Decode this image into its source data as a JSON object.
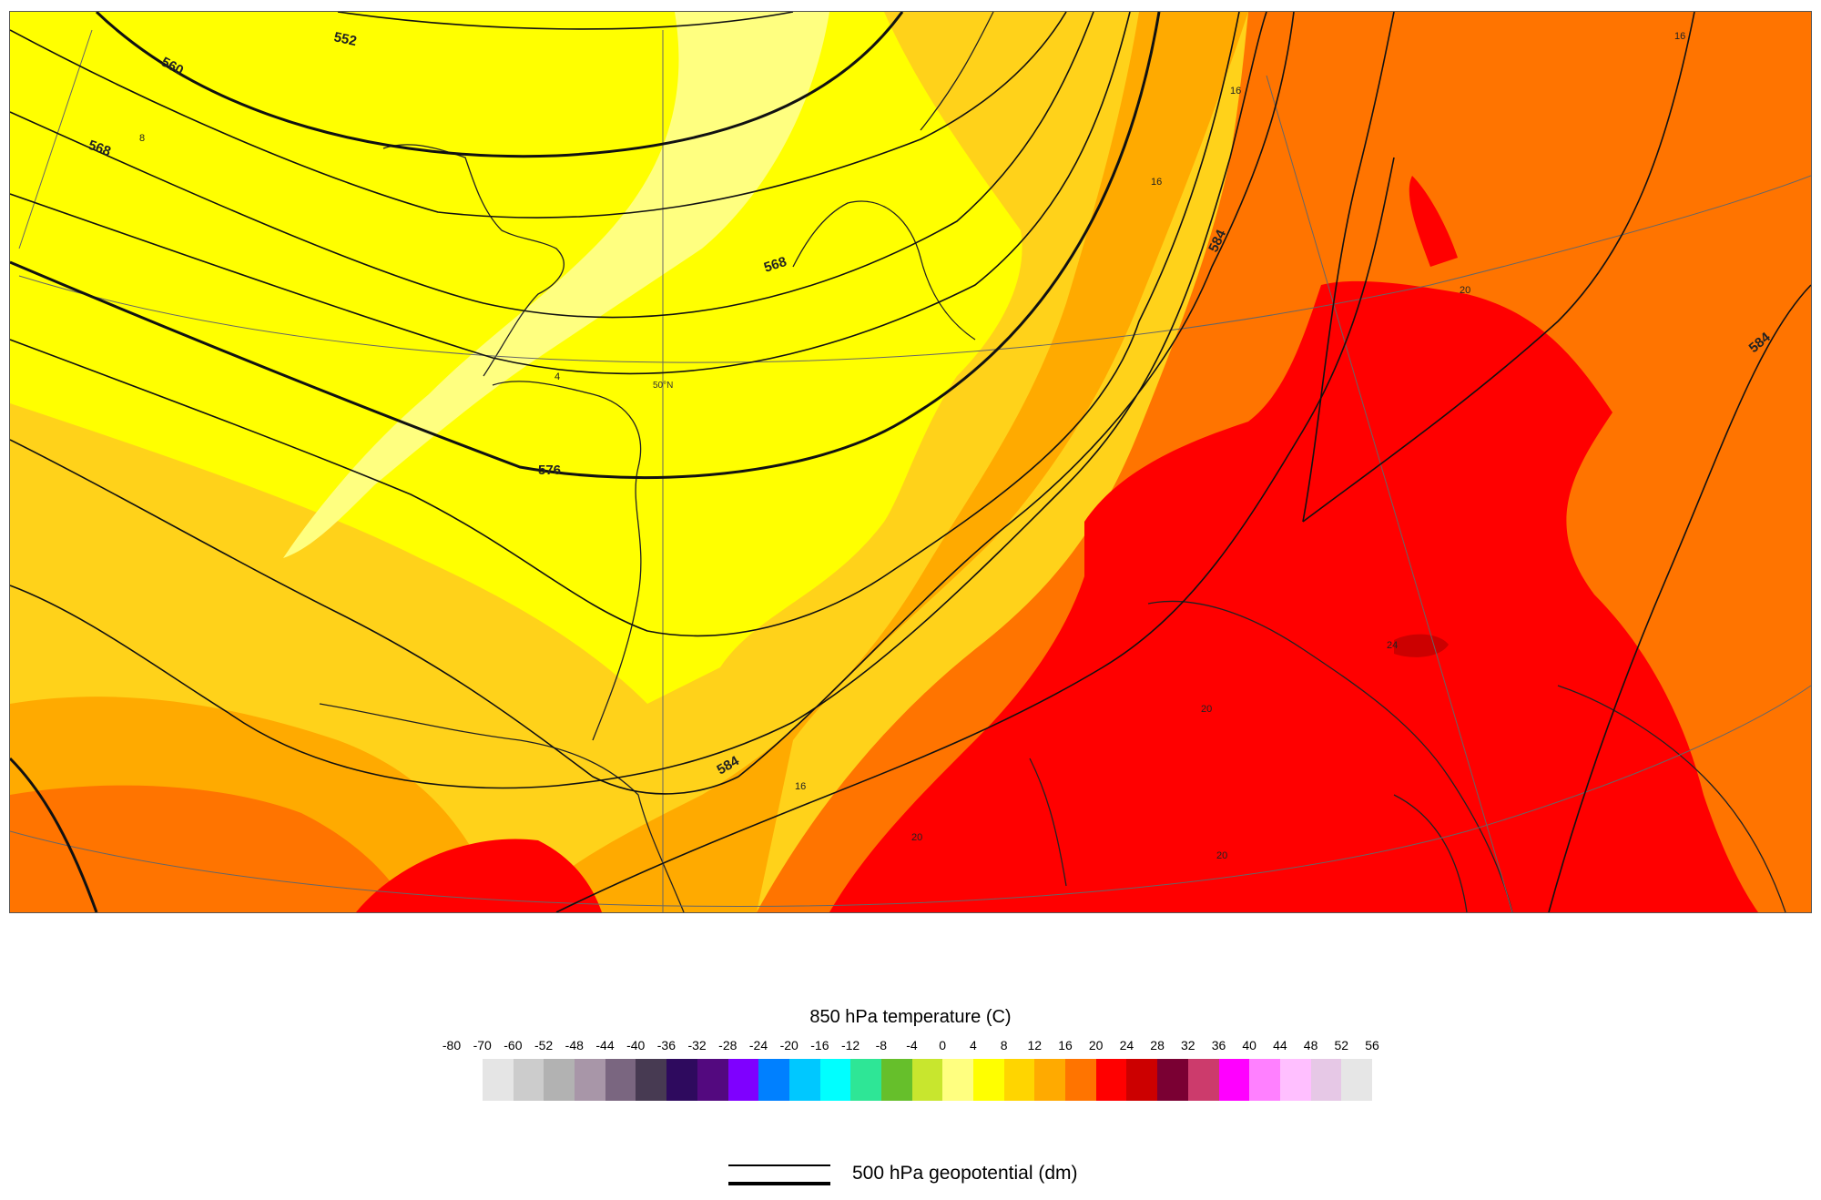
{
  "map": {
    "contour_labels": [
      "552",
      "560",
      "568",
      "568",
      "576",
      "584",
      "584",
      "584"
    ],
    "temperature_labels": [
      "8",
      "4",
      "16",
      "16",
      "16",
      "16",
      "20",
      "20",
      "20",
      "24",
      "20"
    ],
    "latitude_label": "50°N"
  },
  "legend": {
    "title": "850 hPa temperature (C)",
    "ticks": [
      "-80",
      "-70",
      "-60",
      "-52",
      "-48",
      "-44",
      "-40",
      "-36",
      "-32",
      "-28",
      "-24",
      "-20",
      "-16",
      "-12",
      "-8",
      "-4",
      "0",
      "4",
      "8",
      "12",
      "16",
      "20",
      "24",
      "28",
      "32",
      "36",
      "40",
      "44",
      "48",
      "52",
      "56"
    ],
    "colors": [
      "#e5e5e5",
      "#cccccc",
      "#b2b2b2",
      "#a896a8",
      "#7a6680",
      "#473a52",
      "#2e0a5e",
      "#53097f",
      "#7f00ff",
      "#0080ff",
      "#00c8ff",
      "#00ffff",
      "#2ee696",
      "#66bf2b",
      "#c8e62e",
      "#ffff80",
      "#ffff00",
      "#ffd500",
      "#ffaa00",
      "#ff7400",
      "#ff0000",
      "#cc0000",
      "#7a0033",
      "#cc3b6c",
      "#ff00ff",
      "#ff80ff",
      "#ffbfff",
      "#e6c8e6",
      "#e6e6e6"
    ]
  },
  "geopotential_legend": {
    "label": "500 hPa geopotential (dm)"
  }
}
